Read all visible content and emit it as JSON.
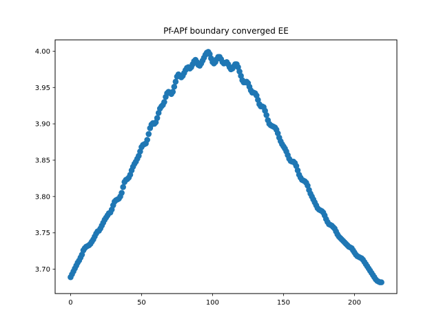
{
  "chart_data": {
    "type": "scatter",
    "title": "Pf-APf boundary converged EE",
    "xlabel": "",
    "ylabel": "",
    "xlim": [
      -10.9,
      229.9
    ],
    "ylim": [
      3.6665,
      4.0155
    ],
    "xticks": [
      0,
      50,
      100,
      150,
      200
    ],
    "yticks": [
      3.7,
      3.75,
      3.8,
      3.85,
      3.9,
      3.95,
      4.0
    ],
    "ytick_labels": [
      "3.70",
      "3.75",
      "3.80",
      "3.85",
      "3.90",
      "3.95",
      "4.00"
    ],
    "grid": false,
    "legend": "none",
    "marker_color": "#1f77b4",
    "x_range": [
      0,
      219
    ],
    "points": [
      [
        0,
        3.689
      ],
      [
        1,
        3.693
      ],
      [
        2,
        3.697
      ],
      [
        3,
        3.701
      ],
      [
        4,
        3.705
      ],
      [
        5,
        3.709
      ],
      [
        6,
        3.712
      ],
      [
        7,
        3.716
      ],
      [
        8,
        3.72
      ],
      [
        9,
        3.726
      ],
      [
        10,
        3.729
      ],
      [
        11,
        3.731
      ],
      [
        12,
        3.732
      ],
      [
        13,
        3.733
      ],
      [
        14,
        3.735
      ],
      [
        15,
        3.738
      ],
      [
        16,
        3.741
      ],
      [
        17,
        3.745
      ],
      [
        18,
        3.749
      ],
      [
        19,
        3.752
      ],
      [
        20,
        3.753
      ],
      [
        21,
        3.756
      ],
      [
        22,
        3.76
      ],
      [
        23,
        3.764
      ],
      [
        24,
        3.768
      ],
      [
        25,
        3.771
      ],
      [
        26,
        3.774
      ],
      [
        27,
        3.777
      ],
      [
        28,
        3.778
      ],
      [
        29,
        3.782
      ],
      [
        30,
        3.788
      ],
      [
        31,
        3.793
      ],
      [
        32,
        3.795
      ],
      [
        33,
        3.796
      ],
      [
        34,
        3.797
      ],
      [
        35,
        3.8
      ],
      [
        36,
        3.805
      ],
      [
        37,
        3.813
      ],
      [
        38,
        3.82
      ],
      [
        39,
        3.823
      ],
      [
        40,
        3.824
      ],
      [
        41,
        3.826
      ],
      [
        42,
        3.83
      ],
      [
        43,
        3.836
      ],
      [
        44,
        3.841
      ],
      [
        45,
        3.845
      ],
      [
        46,
        3.848
      ],
      [
        47,
        3.852
      ],
      [
        48,
        3.856
      ],
      [
        49,
        3.862
      ],
      [
        50,
        3.868
      ],
      [
        51,
        3.871
      ],
      [
        52,
        3.872
      ],
      [
        53,
        3.873
      ],
      [
        54,
        3.878
      ],
      [
        55,
        3.886
      ],
      [
        56,
        3.894
      ],
      [
        57,
        3.899
      ],
      [
        58,
        3.901
      ],
      [
        59,
        3.9
      ],
      [
        60,
        3.902
      ],
      [
        61,
        3.908
      ],
      [
        62,
        3.915
      ],
      [
        63,
        3.921
      ],
      [
        64,
        3.924
      ],
      [
        65,
        3.926
      ],
      [
        66,
        3.93
      ],
      [
        67,
        3.937
      ],
      [
        68,
        3.942
      ],
      [
        69,
        3.944
      ],
      [
        70,
        3.943
      ],
      [
        71,
        3.941
      ],
      [
        72,
        3.944
      ],
      [
        73,
        3.951
      ],
      [
        74,
        3.958
      ],
      [
        75,
        3.965
      ],
      [
        76,
        3.968
      ],
      [
        77,
        3.966
      ],
      [
        78,
        3.964
      ],
      [
        79,
        3.966
      ],
      [
        80,
        3.97
      ],
      [
        81,
        3.974
      ],
      [
        82,
        3.977
      ],
      [
        83,
        3.978
      ],
      [
        84,
        3.976
      ],
      [
        85,
        3.978
      ],
      [
        86,
        3.982
      ],
      [
        87,
        3.986
      ],
      [
        88,
        3.988
      ],
      [
        89,
        3.985
      ],
      [
        90,
        3.981
      ],
      [
        91,
        3.98
      ],
      [
        92,
        3.983
      ],
      [
        93,
        3.987
      ],
      [
        94,
        3.991
      ],
      [
        95,
        3.995
      ],
      [
        96,
        3.998
      ],
      [
        97,
        3.999
      ],
      [
        98,
        3.996
      ],
      [
        99,
        3.99
      ],
      [
        100,
        3.985
      ],
      [
        101,
        3.983
      ],
      [
        102,
        3.985
      ],
      [
        103,
        3.989
      ],
      [
        104,
        3.992
      ],
      [
        105,
        3.992
      ],
      [
        106,
        3.989
      ],
      [
        107,
        3.985
      ],
      [
        108,
        3.983
      ],
      [
        109,
        3.984
      ],
      [
        110,
        3.985
      ],
      [
        111,
        3.982
      ],
      [
        112,
        3.978
      ],
      [
        113,
        3.975
      ],
      [
        114,
        3.976
      ],
      [
        115,
        3.979
      ],
      [
        116,
        3.982
      ],
      [
        117,
        3.982
      ],
      [
        118,
        3.978
      ],
      [
        119,
        3.972
      ],
      [
        120,
        3.966
      ],
      [
        121,
        3.96
      ],
      [
        122,
        3.957
      ],
      [
        123,
        3.957
      ],
      [
        124,
        3.958
      ],
      [
        125,
        3.956
      ],
      [
        126,
        3.951
      ],
      [
        127,
        3.946
      ],
      [
        128,
        3.943
      ],
      [
        129,
        3.943
      ],
      [
        130,
        3.942
      ],
      [
        131,
        3.939
      ],
      [
        132,
        3.933
      ],
      [
        133,
        3.927
      ],
      [
        134,
        3.924
      ],
      [
        135,
        3.924
      ],
      [
        136,
        3.923
      ],
      [
        137,
        3.918
      ],
      [
        138,
        3.912
      ],
      [
        139,
        3.905
      ],
      [
        140,
        3.9
      ],
      [
        141,
        3.898
      ],
      [
        142,
        3.897
      ],
      [
        143,
        3.896
      ],
      [
        144,
        3.895
      ],
      [
        145,
        3.892
      ],
      [
        146,
        3.887
      ],
      [
        147,
        3.881
      ],
      [
        148,
        3.876
      ],
      [
        149,
        3.872
      ],
      [
        150,
        3.869
      ],
      [
        151,
        3.866
      ],
      [
        152,
        3.862
      ],
      [
        153,
        3.857
      ],
      [
        154,
        3.852
      ],
      [
        155,
        3.849
      ],
      [
        156,
        3.848
      ],
      [
        157,
        3.848
      ],
      [
        158,
        3.846
      ],
      [
        159,
        3.842
      ],
      [
        160,
        3.836
      ],
      [
        161,
        3.83
      ],
      [
        162,
        3.826
      ],
      [
        163,
        3.823
      ],
      [
        164,
        3.822
      ],
      [
        165,
        3.821
      ],
      [
        166,
        3.819
      ],
      [
        167,
        3.815
      ],
      [
        168,
        3.809
      ],
      [
        169,
        3.804
      ],
      [
        170,
        3.8
      ],
      [
        171,
        3.796
      ],
      [
        172,
        3.792
      ],
      [
        173,
        3.788
      ],
      [
        174,
        3.784
      ],
      [
        175,
        3.782
      ],
      [
        176,
        3.781
      ],
      [
        177,
        3.78
      ],
      [
        178,
        3.778
      ],
      [
        179,
        3.774
      ],
      [
        180,
        3.769
      ],
      [
        181,
        3.765
      ],
      [
        182,
        3.762
      ],
      [
        183,
        3.761
      ],
      [
        184,
        3.76
      ],
      [
        185,
        3.758
      ],
      [
        186,
        3.756
      ],
      [
        187,
        3.752
      ],
      [
        188,
        3.748
      ],
      [
        189,
        3.745
      ],
      [
        190,
        3.743
      ],
      [
        191,
        3.741
      ],
      [
        192,
        3.739
      ],
      [
        193,
        3.737
      ],
      [
        194,
        3.735
      ],
      [
        195,
        3.733
      ],
      [
        196,
        3.731
      ],
      [
        197,
        3.73
      ],
      [
        198,
        3.729
      ],
      [
        199,
        3.726
      ],
      [
        200,
        3.723
      ],
      [
        201,
        3.72
      ],
      [
        202,
        3.718
      ],
      [
        203,
        3.717
      ],
      [
        204,
        3.716
      ],
      [
        205,
        3.715
      ],
      [
        206,
        3.713
      ],
      [
        207,
        3.71
      ],
      [
        208,
        3.707
      ],
      [
        209,
        3.704
      ],
      [
        210,
        3.701
      ],
      [
        211,
        3.698
      ],
      [
        212,
        3.695
      ],
      [
        213,
        3.692
      ],
      [
        214,
        3.689
      ],
      [
        215,
        3.686
      ],
      [
        216,
        3.684
      ],
      [
        217,
        3.683
      ],
      [
        218,
        3.682
      ],
      [
        219,
        3.682
      ]
    ]
  }
}
